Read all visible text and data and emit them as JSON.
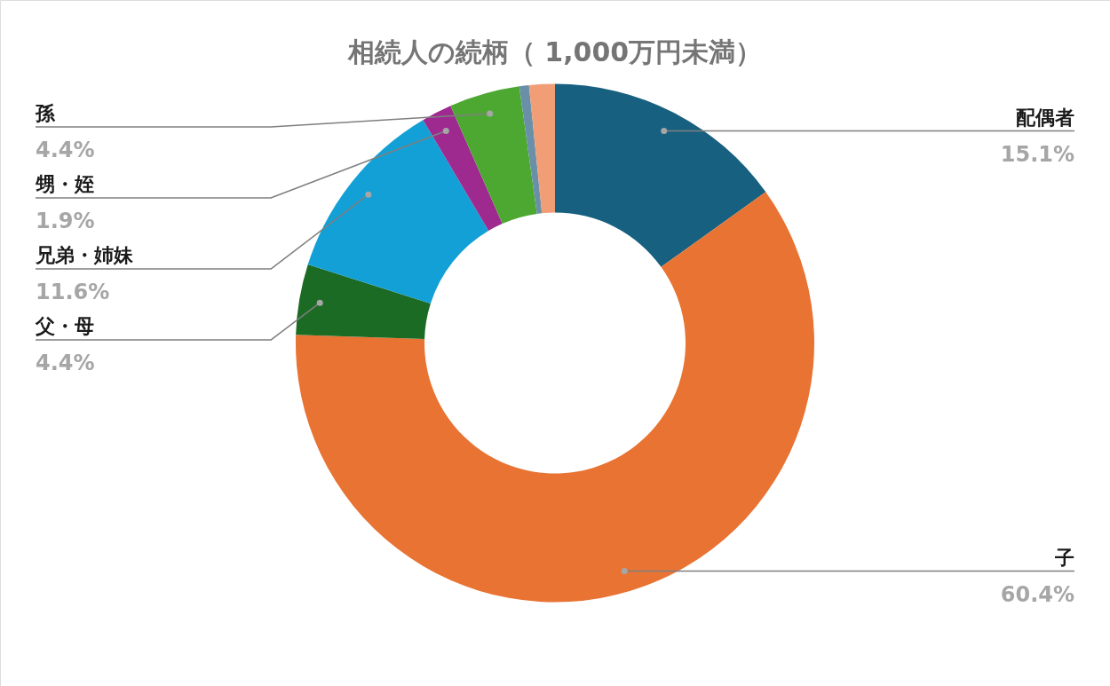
{
  "chart_data": {
    "type": "donut",
    "title": "相続人の続柄（ 1,000万円未満）",
    "categories": [
      "配偶者",
      "子",
      "父・母",
      "兄弟・姉妹",
      "甥・姪",
      "孫",
      null,
      null
    ],
    "values": [
      15.1,
      60.4,
      4.4,
      11.6,
      1.9,
      4.4,
      0.6,
      1.6
    ],
    "value_labels": [
      "15.1%",
      "60.4%",
      "4.4%",
      "11.6%",
      "1.9%",
      "4.4%",
      null,
      null
    ],
    "colors": [
      "#17607f",
      "#e87333",
      "#1b6b24",
      "#13a0d6",
      "#9e2a90",
      "#4da832",
      "#6a8fa8",
      "#f19e76"
    ]
  }
}
